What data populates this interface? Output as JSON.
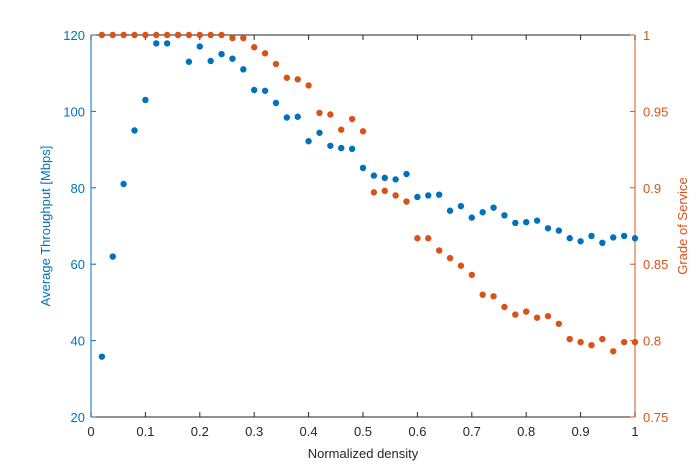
{
  "chart_data": {
    "type": "scatter",
    "xlabel": "Normalized density",
    "ylabel_left": "Average Throughput [Mbps]",
    "ylabel_right": "Grade of Service",
    "xlim": [
      0,
      1
    ],
    "ylim_left": [
      20,
      120
    ],
    "ylim_right": [
      0.75,
      1
    ],
    "x_ticks": [
      0,
      0.1,
      0.2,
      0.3,
      0.4,
      0.5,
      0.6,
      0.7,
      0.8,
      0.9,
      1
    ],
    "y_ticks_left": [
      20,
      40,
      60,
      80,
      100,
      120
    ],
    "y_ticks_right": [
      0.75,
      0.8,
      0.85,
      0.9,
      0.95,
      1
    ],
    "y_tick_labels_right": [
      "0.75",
      "0.8",
      "0.85",
      "0.9",
      "0.95",
      "1"
    ],
    "grid": true,
    "colors": {
      "left": "#0072BD",
      "right": "#D95319"
    },
    "series": [
      {
        "axis": "left",
        "x": [
          0.02,
          0.04,
          0.06,
          0.08,
          0.1,
          0.12,
          0.14,
          0.16,
          0.18,
          0.2,
          0.22,
          0.24,
          0.26,
          0.28,
          0.3,
          0.32,
          0.34,
          0.36,
          0.38,
          0.4,
          0.42,
          0.44,
          0.46,
          0.48,
          0.5,
          0.52,
          0.54,
          0.56,
          0.58,
          0.6,
          0.62,
          0.64,
          0.66,
          0.68,
          0.7,
          0.72,
          0.74,
          0.76,
          0.78,
          0.8,
          0.82,
          0.84,
          0.86,
          0.88,
          0.9,
          0.92,
          0.94,
          0.96,
          0.98,
          1.0
        ],
        "values": [
          35.8,
          62,
          81,
          95,
          103,
          117.8,
          117.8,
          120,
          113,
          117,
          113.2,
          115,
          113.8,
          111,
          105.6,
          105.4,
          102.2,
          98.4,
          98.6,
          92.2,
          94.4,
          91,
          90.4,
          90.2,
          85.2,
          83.2,
          82.6,
          82.2,
          83.6,
          77.6,
          78,
          78.2,
          74,
          75.2,
          72.2,
          73.6,
          74.8,
          72.8,
          70.8,
          71,
          71.4,
          69.4,
          68.8,
          66.8,
          66,
          67.4,
          65.6,
          67,
          67.4,
          66.8
        ]
      },
      {
        "axis": "right",
        "x": [
          0.02,
          0.04,
          0.06,
          0.08,
          0.1,
          0.12,
          0.14,
          0.16,
          0.18,
          0.2,
          0.22,
          0.24,
          0.26,
          0.28,
          0.3,
          0.32,
          0.34,
          0.36,
          0.38,
          0.4,
          0.42,
          0.44,
          0.46,
          0.48,
          0.5,
          0.52,
          0.54,
          0.56,
          0.58,
          0.6,
          0.62,
          0.64,
          0.66,
          0.68,
          0.7,
          0.72,
          0.74,
          0.76,
          0.78,
          0.8,
          0.82,
          0.84,
          0.86,
          0.88,
          0.9,
          0.92,
          0.94,
          0.96,
          0.98,
          1.0
        ],
        "values": [
          1,
          1,
          1,
          1,
          1,
          1,
          1,
          1,
          1,
          1,
          1,
          1,
          0.998,
          0.998,
          0.992,
          0.988,
          0.981,
          0.972,
          0.971,
          0.967,
          0.949,
          0.948,
          0.938,
          0.945,
          0.937,
          0.897,
          0.898,
          0.895,
          0.891,
          0.867,
          0.867,
          0.859,
          0.854,
          0.849,
          0.843,
          0.83,
          0.829,
          0.822,
          0.817,
          0.819,
          0.815,
          0.816,
          0.811,
          0.801,
          0.799,
          0.797,
          0.801,
          0.793,
          0.799,
          0.799
        ]
      }
    ]
  }
}
